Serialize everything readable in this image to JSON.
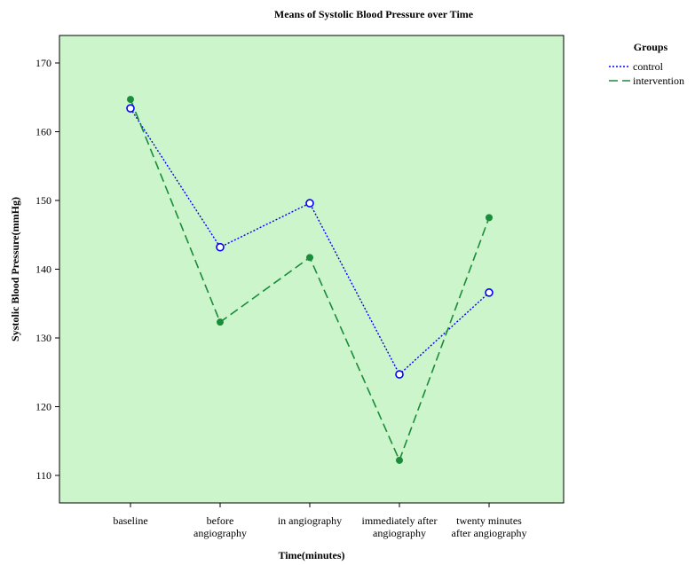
{
  "chart_data": {
    "type": "line",
    "title": "Means of Systolic Blood Pressure over Time",
    "xlabel": "Time(minutes)",
    "ylabel": "Systolic Blood Pressure(mmHg)",
    "categories": [
      [
        "baseline"
      ],
      [
        "before",
        "angiography"
      ],
      [
        "in angiography"
      ],
      [
        "immediately after",
        "angiography"
      ],
      [
        "twenty minutes",
        "after angiography"
      ]
    ],
    "ylim": [
      106,
      174
    ],
    "yticks": [
      110,
      120,
      130,
      140,
      150,
      160,
      170
    ],
    "grid": false,
    "legend": {
      "title": "Groups",
      "position": "right"
    },
    "series": [
      {
        "name": "control",
        "values": [
          163.4,
          143.2,
          149.6,
          124.7,
          136.6
        ],
        "color": "#0000ff",
        "dash": "dotted",
        "marker": "open-circle"
      },
      {
        "name": "intervention",
        "values": [
          164.7,
          132.3,
          141.7,
          112.2,
          147.5
        ],
        "color": "#1a8c3a",
        "dash": "dashed",
        "marker": "filled-circle"
      }
    ],
    "plot_background": "#ccf5cc"
  }
}
